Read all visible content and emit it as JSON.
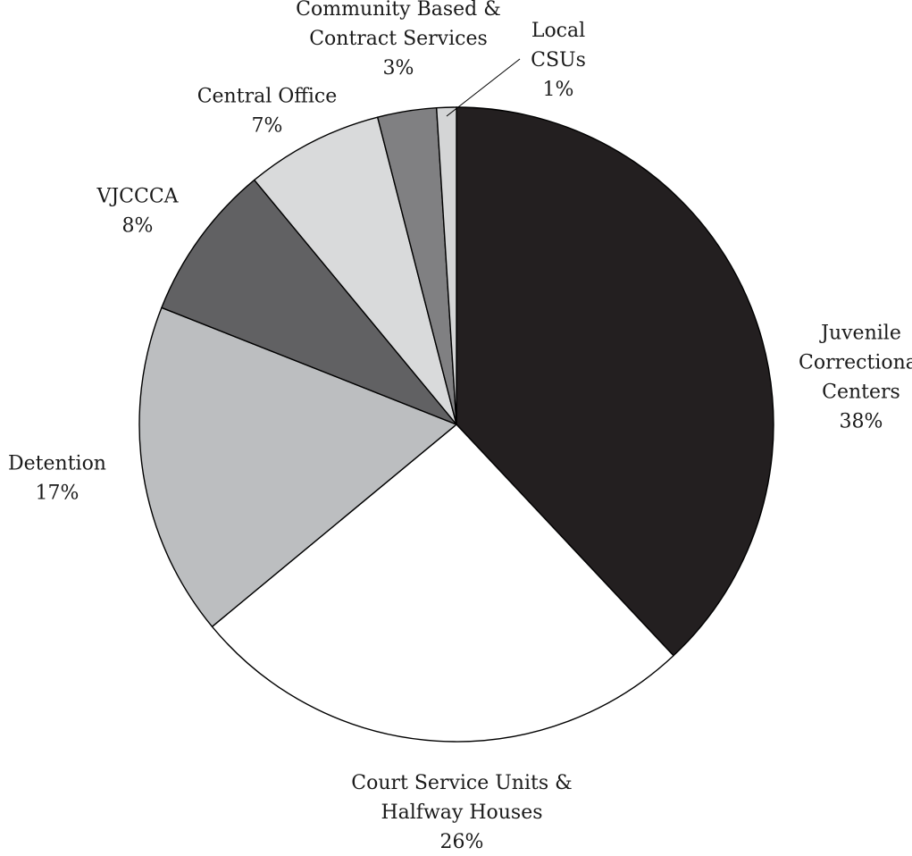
{
  "chart_data": {
    "type": "pie",
    "start": "12 o'clock",
    "direction": "clockwise",
    "legend": "none",
    "slices": [
      {
        "label": [
          "Juvenile",
          "Correctional",
          "Centers"
        ],
        "value": 38,
        "pct_label": "38%",
        "color": "#231f20"
      },
      {
        "label": [
          "Court Service Units &",
          "Halfway Houses"
        ],
        "value": 26,
        "pct_label": "26%",
        "color": "#ffffff"
      },
      {
        "label": [
          "Detention"
        ],
        "value": 17,
        "pct_label": "17%",
        "color": "#bcbec0"
      },
      {
        "label": [
          "VJCCCA"
        ],
        "value": 8,
        "pct_label": "8%",
        "color": "#616163"
      },
      {
        "label": [
          "Central Office"
        ],
        "value": 7,
        "pct_label": "7%",
        "color": "#d9dadb"
      },
      {
        "label": [
          "Community Based &",
          "Contract Services"
        ],
        "value": 3,
        "pct_label": "3%",
        "color": "#808082"
      },
      {
        "label": [
          "Local",
          "CSUs"
        ],
        "value": 1,
        "pct_label": "1%",
        "color": "#d4d5d6"
      }
    ]
  }
}
